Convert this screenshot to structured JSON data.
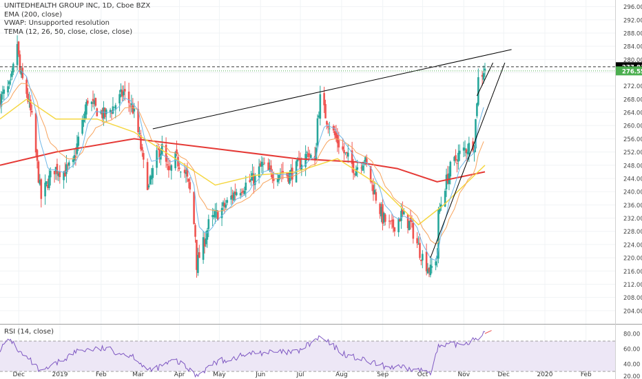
{
  "legend": {
    "title": "UNITEDHEALTH GROUP INC, 1D, Cboe BZX",
    "ema": "EMA (200, close)",
    "vwap": "VWAP: Unsupported resolution",
    "tema": "TEMA (12, 26, 50, close, close, close)",
    "rsi": "RSI (14, close)"
  },
  "colors": {
    "up": "#26a69a",
    "down": "#ef5350",
    "ema200": "#e53935",
    "yellow": "#f5d742",
    "orange": "#f7a35c",
    "blue": "#6fb7e8",
    "rsi": "#7e57c2",
    "rsi_band": "#ede7f6",
    "trend": "#000000",
    "price_green": "#4caf50"
  },
  "chart_data": [
    {
      "type": "candlestick",
      "title": "UNITEDHEALTH GROUP INC, 1D, Cboe BZX",
      "ylim": [
        200,
        298
      ],
      "y_ticks": [
        "204.00",
        "208.00",
        "212.00",
        "216.00",
        "220.00",
        "224.00",
        "228.00",
        "232.00",
        "236.00",
        "240.00",
        "244.00",
        "248.00",
        "252.00",
        "256.00",
        "260.00",
        "264.00",
        "268.00",
        "272.00",
        "276.00",
        "280.00",
        "284.00",
        "288.00",
        "292.00",
        "296.00"
      ],
      "x_ticks": [
        "Dec",
        "2019",
        "Feb",
        "Mar",
        "Apr",
        "May",
        "Jun",
        "Jul",
        "Aug",
        "Sep",
        "Oct",
        "Nov",
        "Dec",
        "2020",
        "Feb"
      ],
      "price_labels": {
        "last": "277.81",
        "current": "276.55"
      },
      "close_path": [
        [
          "2018-11-20",
          268
        ],
        [
          "2018-11-28",
          272
        ],
        [
          "2018-12-03",
          285
        ],
        [
          "2018-12-05",
          276
        ],
        [
          "2018-12-10",
          270
        ],
        [
          "2018-12-14",
          262
        ],
        [
          "2018-12-18",
          248
        ],
        [
          "2018-12-21",
          238
        ],
        [
          "2018-12-26",
          243
        ],
        [
          "2018-12-31",
          247
        ],
        [
          "2019-01-07",
          246
        ],
        [
          "2019-01-14",
          248
        ],
        [
          "2019-01-18",
          256
        ],
        [
          "2019-01-22",
          262
        ],
        [
          "2019-01-25",
          268
        ],
        [
          "2019-01-31",
          265
        ],
        [
          "2019-02-07",
          263
        ],
        [
          "2019-02-14",
          266
        ],
        [
          "2019-02-21",
          270
        ],
        [
          "2019-02-28",
          265
        ],
        [
          "2019-03-05",
          256
        ],
        [
          "2019-03-08",
          248
        ],
        [
          "2019-03-12",
          241
        ],
        [
          "2019-03-15",
          246
        ],
        [
          "2019-03-19",
          252
        ],
        [
          "2019-03-22",
          253
        ],
        [
          "2019-03-27",
          245
        ],
        [
          "2019-04-01",
          250
        ],
        [
          "2019-04-05",
          248
        ],
        [
          "2019-04-09",
          245
        ],
        [
          "2019-04-12",
          240
        ],
        [
          "2019-04-16",
          227
        ],
        [
          "2019-04-17",
          218
        ],
        [
          "2019-04-22",
          224
        ],
        [
          "2019-04-26",
          230
        ],
        [
          "2019-05-02",
          233
        ],
        [
          "2019-05-09",
          236
        ],
        [
          "2019-05-16",
          240
        ],
        [
          "2019-05-23",
          242
        ],
        [
          "2019-05-31",
          244
        ],
        [
          "2019-06-05",
          248
        ],
        [
          "2019-06-12",
          245
        ],
        [
          "2019-06-19",
          246
        ],
        [
          "2019-06-26",
          245
        ],
        [
          "2019-07-03",
          248
        ],
        [
          "2019-07-10",
          252
        ],
        [
          "2019-07-15",
          248
        ],
        [
          "2019-07-17",
          262
        ],
        [
          "2019-07-19",
          268
        ],
        [
          "2019-07-24",
          262
        ],
        [
          "2019-07-31",
          256
        ],
        [
          "2019-08-07",
          251
        ],
        [
          "2019-08-14",
          247
        ],
        [
          "2019-08-21",
          250
        ],
        [
          "2019-08-28",
          241
        ],
        [
          "2019-09-04",
          232
        ],
        [
          "2019-09-11",
          229
        ],
        [
          "2019-09-18",
          233
        ],
        [
          "2019-09-25",
          230
        ],
        [
          "2019-10-02",
          222
        ],
        [
          "2019-10-07",
          218
        ],
        [
          "2019-10-10",
          216
        ],
        [
          "2019-10-15",
          221
        ],
        [
          "2019-10-16",
          233
        ],
        [
          "2019-10-21",
          242
        ],
        [
          "2019-10-25",
          247
        ],
        [
          "2019-10-31",
          251
        ],
        [
          "2019-11-06",
          253
        ],
        [
          "2019-11-12",
          255
        ],
        [
          "2019-11-14",
          268
        ],
        [
          "2019-11-15",
          274
        ],
        [
          "2019-11-18",
          276
        ],
        [
          "2019-11-20",
          277.8
        ]
      ],
      "ema200_path": [
        [
          "2018-11-20",
          248
        ],
        [
          "2019-01-01",
          252
        ],
        [
          "2019-03-01",
          256
        ],
        [
          "2019-05-01",
          253
        ],
        [
          "2019-07-01",
          250
        ],
        [
          "2019-08-15",
          249
        ],
        [
          "2019-09-15",
          247
        ],
        [
          "2019-10-15",
          243
        ],
        [
          "2019-11-20",
          246
        ]
      ],
      "tema_yellow_path": [
        [
          "2018-11-20",
          262
        ],
        [
          "2018-12-10",
          268
        ],
        [
          "2019-01-01",
          262
        ],
        [
          "2019-02-01",
          262
        ],
        [
          "2019-03-01",
          258
        ],
        [
          "2019-04-01",
          250
        ],
        [
          "2019-05-01",
          242
        ],
        [
          "2019-06-01",
          245
        ],
        [
          "2019-07-01",
          246
        ],
        [
          "2019-08-01",
          250
        ],
        [
          "2019-09-01",
          242
        ],
        [
          "2019-10-01",
          230
        ],
        [
          "2019-10-20",
          236
        ],
        [
          "2019-11-20",
          248
        ]
      ],
      "trend_upper": [
        [
          "2019-03-15",
          259
        ],
        [
          "2019-12-10",
          283
        ]
      ],
      "trend_lower": [
        [
          "2019-10-10",
          220
        ],
        [
          "2019-12-05",
          279
        ]
      ],
      "trend_rsi": [
        [
          "2019-11-20",
          80
        ],
        [
          "2019-11-25",
          84
        ]
      ]
    },
    {
      "type": "line",
      "title": "RSI (14, close)",
      "ylim": [
        20,
        90
      ],
      "y_ticks": [
        "20.00",
        "40.00",
        "60.00",
        "80.00"
      ],
      "bands": [
        30,
        70
      ],
      "series": [
        {
          "values": [
            [
              "2018-11-20",
              60
            ],
            [
              "2018-11-28",
              72
            ],
            [
              "2018-12-05",
              55
            ],
            [
              "2018-12-14",
              42
            ],
            [
              "2018-12-21",
              28
            ],
            [
              "2019-01-01",
              40
            ],
            [
              "2019-01-18",
              58
            ],
            [
              "2019-02-07",
              60
            ],
            [
              "2019-03-01",
              50
            ],
            [
              "2019-03-12",
              30
            ],
            [
              "2019-04-01",
              45
            ],
            [
              "2019-04-17",
              25
            ],
            [
              "2019-05-01",
              42
            ],
            [
              "2019-06-01",
              55
            ],
            [
              "2019-07-01",
              55
            ],
            [
              "2019-07-19",
              75
            ],
            [
              "2019-08-07",
              52
            ],
            [
              "2019-09-04",
              37
            ],
            [
              "2019-10-10",
              30
            ],
            [
              "2019-10-16",
              62
            ],
            [
              "2019-11-06",
              68
            ],
            [
              "2019-11-20",
              80
            ]
          ]
        }
      ]
    }
  ]
}
